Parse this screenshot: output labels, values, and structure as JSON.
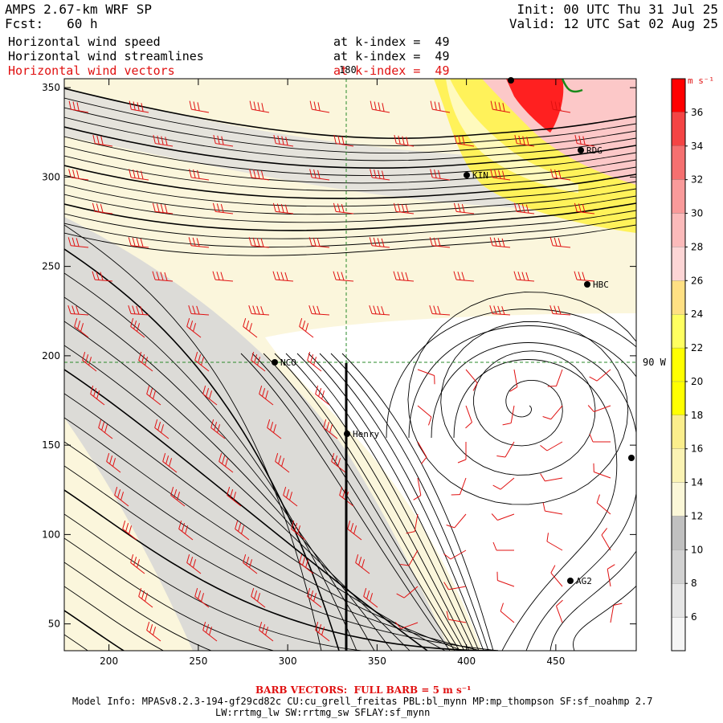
{
  "header": {
    "left_line1": "AMPS 2.67-km WRF SP",
    "left_line2": "Fcst:   60 h",
    "init": "Init: 00 UTC Thu 31 Jul 25",
    "valid": "Valid: 12 UTC Sat 02 Aug 25"
  },
  "fields": [
    {
      "name": "Horizontal wind speed",
      "level": "at k-index =  49",
      "color": "#000000"
    },
    {
      "name": "Horizontal wind streamlines",
      "level": "at k-index =  49",
      "color": "#000000"
    },
    {
      "name": "Horizontal wind vectors",
      "level": "at k-index =  49",
      "color": "#e01010"
    }
  ],
  "map": {
    "x_ticks": [
      "200",
      "250",
      "300",
      "350",
      "400",
      "450"
    ],
    "y_ticks": [
      "350",
      "300",
      "250",
      "200",
      "150",
      "100",
      "50"
    ],
    "meridian_label": "180",
    "parallel_label": "90 W",
    "stations": [
      {
        "id": "RDG",
        "label": "RDG"
      },
      {
        "id": "KIN",
        "label": "KIN"
      },
      {
        "id": "HBC",
        "label": "HBC"
      },
      {
        "id": "NCO",
        "label": "NCO"
      },
      {
        "id": "Henry",
        "label": "Henry"
      },
      {
        "id": "AG2",
        "label": "AG2"
      }
    ]
  },
  "colorbar": {
    "unit": "m s⁻¹",
    "labels": [
      "36",
      "34",
      "32",
      "30",
      "28",
      "26",
      "24",
      "22",
      "20",
      "18",
      "16",
      "14",
      "12",
      "10",
      "8",
      "6"
    ],
    "colors": [
      "#f5f5f5",
      "#e6e6e6",
      "#d2d2d2",
      "#c0c0c0",
      "#fbf7d8",
      "#fbf3b4",
      "#fbee8c",
      "#ffff00",
      "#ffff00",
      "#ffff60",
      "#ffe083",
      "#fcd5d5",
      "#fbbaba",
      "#f99a9a",
      "#f57070",
      "#f44444",
      "#ff0000"
    ]
  },
  "footer": {
    "barb": "BARB VECTORS:  FULL BARB = 5 m s⁻¹",
    "model_info": "Model Info: MPASv8.2.3-194-gf29cd82c CU:cu_grell_freitas PBL:bl_mynn MP:mp_thompson SF:sf_noahmp 2.7",
    "model_info2": "LW:rrtmg_lw SW:rrtmg_sw SFLAY:sf_mynn"
  }
}
